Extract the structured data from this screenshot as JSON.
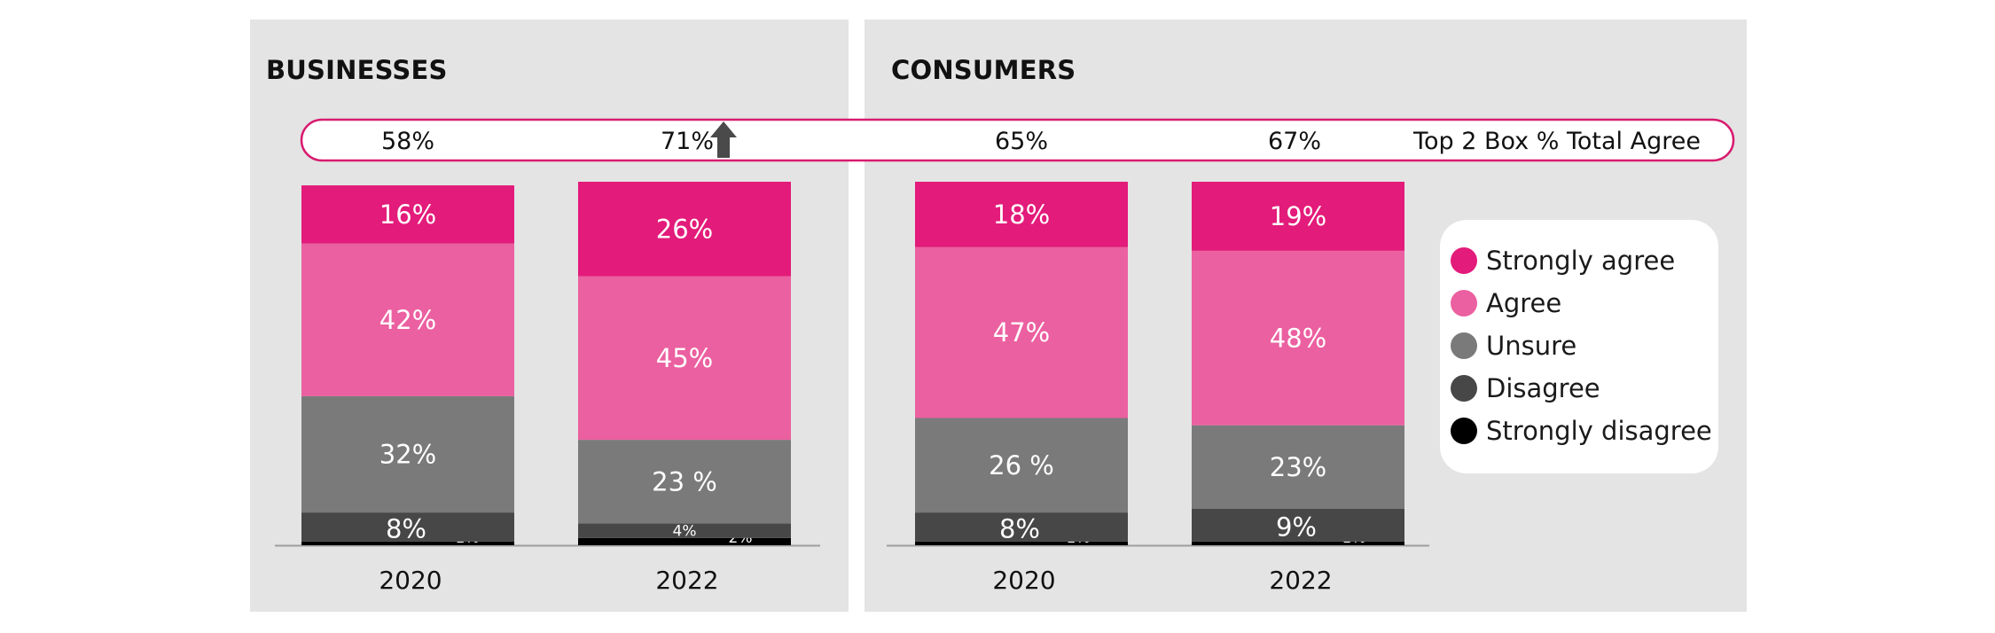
{
  "panels": [
    {
      "title": "BUSINESSES"
    },
    {
      "title": "CONSUMERS"
    }
  ],
  "colors": {
    "strongly_agree": "#e31b7a",
    "agree": "#eb60a0",
    "unsure": "#7a7a7a",
    "disagree": "#474747",
    "strongly_disagree": "#000000",
    "banner_border": "#d81b6f",
    "arrow": "#4a4a4a"
  },
  "top_box": {
    "label": "Top 2 Box % Total Agree",
    "values": [
      "58%",
      "71%",
      "65%",
      "67%"
    ],
    "arrow_icon": "up-arrow-icon",
    "arrow_after_index": 1
  },
  "legend": {
    "items": [
      {
        "key": "strongly_agree",
        "label": "Strongly agree"
      },
      {
        "key": "agree",
        "label": "Agree"
      },
      {
        "key": "unsure",
        "label": "Unsure"
      },
      {
        "key": "disagree",
        "label": "Disagree"
      },
      {
        "key": "strongly_disagree",
        "label": "Strongly disagree"
      }
    ]
  },
  "chart_data": [
    {
      "type": "bar",
      "stacked": true,
      "title": "BUSINESSES",
      "categories": [
        "2020",
        "2022"
      ],
      "series": [
        {
          "name": "Strongly disagree",
          "key": "strongly_disagree",
          "values": [
            1,
            2
          ],
          "labels": [
            "1%",
            "2%"
          ]
        },
        {
          "name": "Disagree",
          "key": "disagree",
          "values": [
            8,
            4
          ],
          "labels": [
            "8%",
            "4%"
          ]
        },
        {
          "name": "Unsure",
          "key": "unsure",
          "values": [
            32,
            23
          ],
          "labels": [
            "32%",
            "23 %"
          ]
        },
        {
          "name": "Agree",
          "key": "agree",
          "values": [
            42,
            45
          ],
          "labels": [
            "42%",
            "45%"
          ]
        },
        {
          "name": "Strongly agree",
          "key": "strongly_agree",
          "values": [
            16,
            26
          ],
          "labels": [
            "16%",
            "26%"
          ]
        }
      ],
      "top2box": [
        58,
        71
      ]
    },
    {
      "type": "bar",
      "stacked": true,
      "title": "CONSUMERS",
      "categories": [
        "2020",
        "2022"
      ],
      "series": [
        {
          "name": "Strongly disagree",
          "key": "strongly_disagree",
          "values": [
            1,
            1
          ],
          "labels": [
            "1%",
            "1%"
          ]
        },
        {
          "name": "Disagree",
          "key": "disagree",
          "values": [
            8,
            9
          ],
          "labels": [
            "8%",
            "9%"
          ]
        },
        {
          "name": "Unsure",
          "key": "unsure",
          "values": [
            26,
            23
          ],
          "labels": [
            "26 %",
            "23%"
          ]
        },
        {
          "name": "Agree",
          "key": "agree",
          "values": [
            47,
            48
          ],
          "labels": [
            "47%",
            "48%"
          ]
        },
        {
          "name": "Strongly agree",
          "key": "strongly_agree",
          "values": [
            18,
            19
          ],
          "labels": [
            "18%",
            "19%"
          ]
        }
      ],
      "top2box": [
        65,
        67
      ]
    }
  ]
}
